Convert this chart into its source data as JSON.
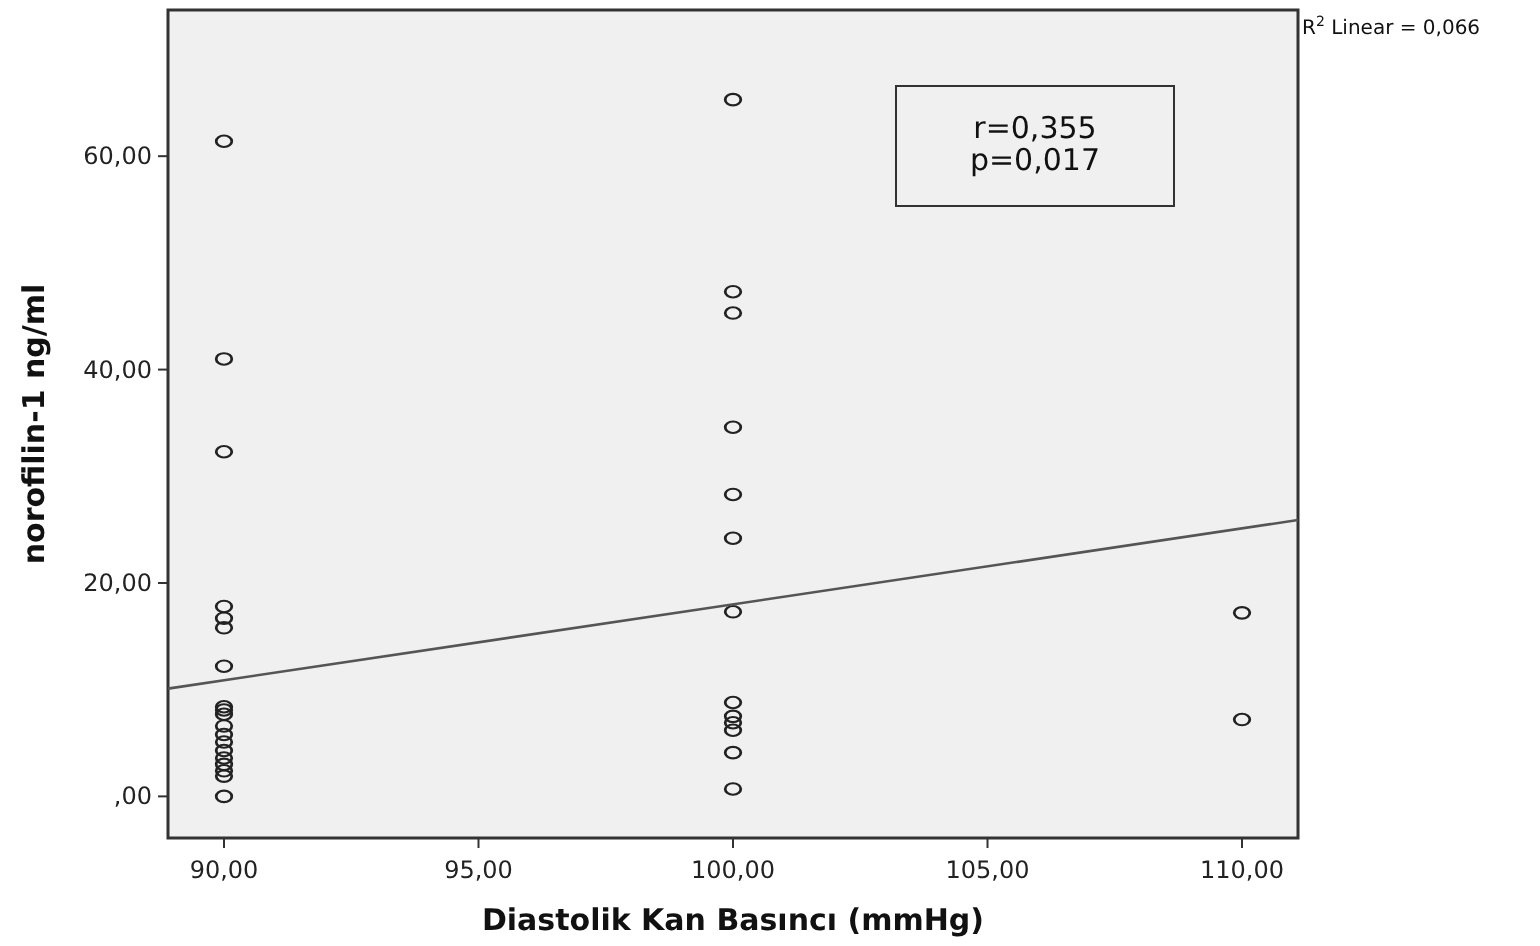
{
  "chart_data": {
    "type": "scatter",
    "xlabel": "Diastolik Kan Basıncı (mmHg)",
    "ylabel": "norofilin-1 ng/ml",
    "annotations": [
      "r=0,355\np=0,017",
      "R$^{2}$ Linear = 0,066"
    ],
    "xlim": [
      88.9,
      111.1
    ],
    "ylim": [
      -3.9,
      73.7
    ],
    "xticks": [
      {
        "value": 90,
        "label": "90,00"
      },
      {
        "value": 95,
        "label": "95,00"
      },
      {
        "value": 100,
        "label": "100,00"
      },
      {
        "value": 105,
        "label": "105,00"
      },
      {
        "value": 110,
        "label": "110,00"
      }
    ],
    "yticks": [
      {
        "value": 0,
        "label": ",00"
      },
      {
        "value": 20,
        "label": "20,00"
      },
      {
        "value": 40,
        "label": "40,00"
      },
      {
        "value": 60,
        "label": "60,00"
      }
    ],
    "grid": false,
    "series": [
      {
        "marker": "circle",
        "color": "#222222",
        "x": [
          90,
          90,
          90,
          90,
          90,
          90,
          90,
          90,
          90,
          90,
          90,
          90,
          90,
          90,
          90,
          90,
          90,
          90,
          90,
          100,
          100,
          100,
          100,
          100,
          100,
          100,
          100,
          100,
          100,
          100,
          100,
          100,
          110,
          110
        ],
        "values": [
          61.4,
          41.0,
          32.3,
          17.8,
          16.7,
          15.8,
          12.2,
          8.4,
          8.1,
          7.7,
          6.6,
          5.8,
          5.1,
          4.3,
          3.6,
          3.0,
          2.4,
          1.9,
          0,
          65.3,
          47.3,
          45.3,
          34.6,
          28.3,
          24.2,
          17.3,
          8.8,
          7.5,
          6.9,
          6.2,
          4.1,
          0.7,
          17.2,
          7.2
        ]
      },
      {
        "type": "line",
        "color": "#555555",
        "line_style": "solid",
        "x": [
          88.9,
          111.1
        ],
        "values": [
          10.1,
          25.9
        ]
      }
    ]
  }
}
